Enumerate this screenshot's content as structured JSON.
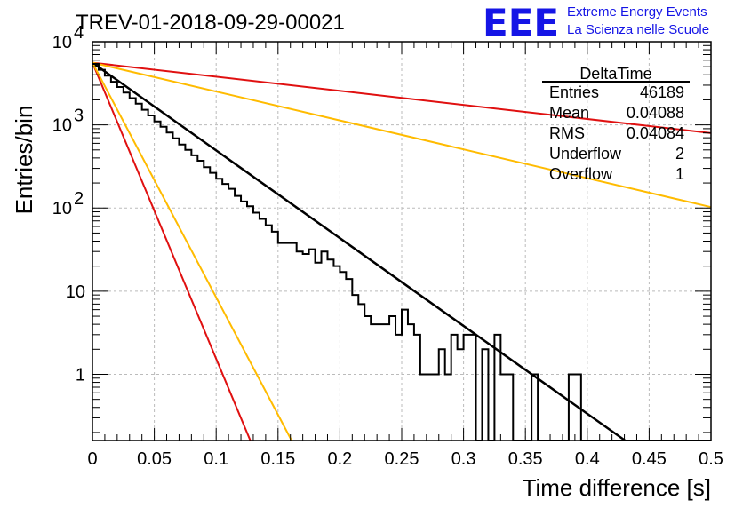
{
  "title": "TREV-01-2018-09-29-00021",
  "logo": {
    "mark": "EEE",
    "line1": "Extreme Energy Events",
    "line2": "La Scienza nelle Scuole",
    "color": "#1515e6"
  },
  "stats": {
    "name": "DeltaTime",
    "rows": [
      {
        "label": "Entries",
        "value": "46189"
      },
      {
        "label": "Mean",
        "value": "0.04088"
      },
      {
        "label": "RMS",
        "value": "0.04084"
      },
      {
        "label": "Underflow",
        "value": "2"
      },
      {
        "label": "Overflow",
        "value": "1"
      }
    ]
  },
  "colors": {
    "histogram": "#000000",
    "fit": "#000000",
    "red_band": "#e01010",
    "orange_band": "#ffbb00",
    "grid": "#bbbbbb"
  },
  "chart_data": {
    "type": "line",
    "xlabel": "Time difference [s]",
    "ylabel": "Entries/bin",
    "xlim": [
      0,
      0.5
    ],
    "ylim": [
      0.16,
      10000
    ],
    "yscale": "log",
    "grid": true,
    "xticks": [
      "0",
      "0.05",
      "0.1",
      "0.15",
      "0.2",
      "0.25",
      "0.3",
      "0.35",
      "0.4",
      "0.45",
      "0.5"
    ],
    "yticks": [
      {
        "value": 1,
        "label": "1"
      },
      {
        "value": 10,
        "label": "10"
      },
      {
        "value": 100,
        "label": "10",
        "exp": "2"
      },
      {
        "value": 1000,
        "label": "10",
        "exp": "3"
      },
      {
        "value": 10000,
        "label": "10",
        "exp": "4"
      }
    ],
    "histogram": {
      "bin_width": 0.005,
      "values": [
        5400,
        4600,
        3900,
        3300,
        2850,
        2450,
        2100,
        1800,
        1520,
        1300,
        1100,
        950,
        810,
        690,
        580,
        500,
        430,
        370,
        310,
        265,
        225,
        195,
        170,
        140,
        120,
        105,
        88,
        74,
        62,
        52,
        38,
        38,
        38,
        30,
        28,
        32,
        22,
        30,
        24,
        20,
        17,
        14,
        9,
        7,
        5,
        4,
        4,
        4,
        5,
        3,
        6,
        4,
        3,
        1,
        1,
        1,
        2,
        1,
        3,
        2,
        3,
        3,
        0.1,
        2,
        0.1,
        3,
        1,
        1,
        0.1,
        0.1,
        0.1,
        1,
        0.1,
        0.1,
        0.1,
        0.1,
        0.1,
        1,
        1,
        0.1,
        0.1,
        0.1,
        0.1,
        0.1,
        0.1,
        0.1,
        0.1,
        0.1,
        0.1,
        0.1,
        0.1,
        0.1,
        0.1,
        0.1,
        0.1,
        0.1,
        0.1,
        0.1,
        0.1,
        0.1
      ]
    },
    "series": [
      {
        "amplitude": 5600,
        "rate": 24.3,
        "color": "#000000",
        "width": 2.5
      },
      {
        "amplitude": 5600,
        "rate": 3.9,
        "color": "#e01010",
        "width": 2
      },
      {
        "amplitude": 5600,
        "rate": 82,
        "color": "#e01010",
        "width": 2
      },
      {
        "amplitude": 5600,
        "rate": 8.0,
        "color": "#ffbb00",
        "width": 2
      },
      {
        "amplitude": 5600,
        "rate": 65,
        "color": "#ffbb00",
        "width": 2
      }
    ]
  }
}
